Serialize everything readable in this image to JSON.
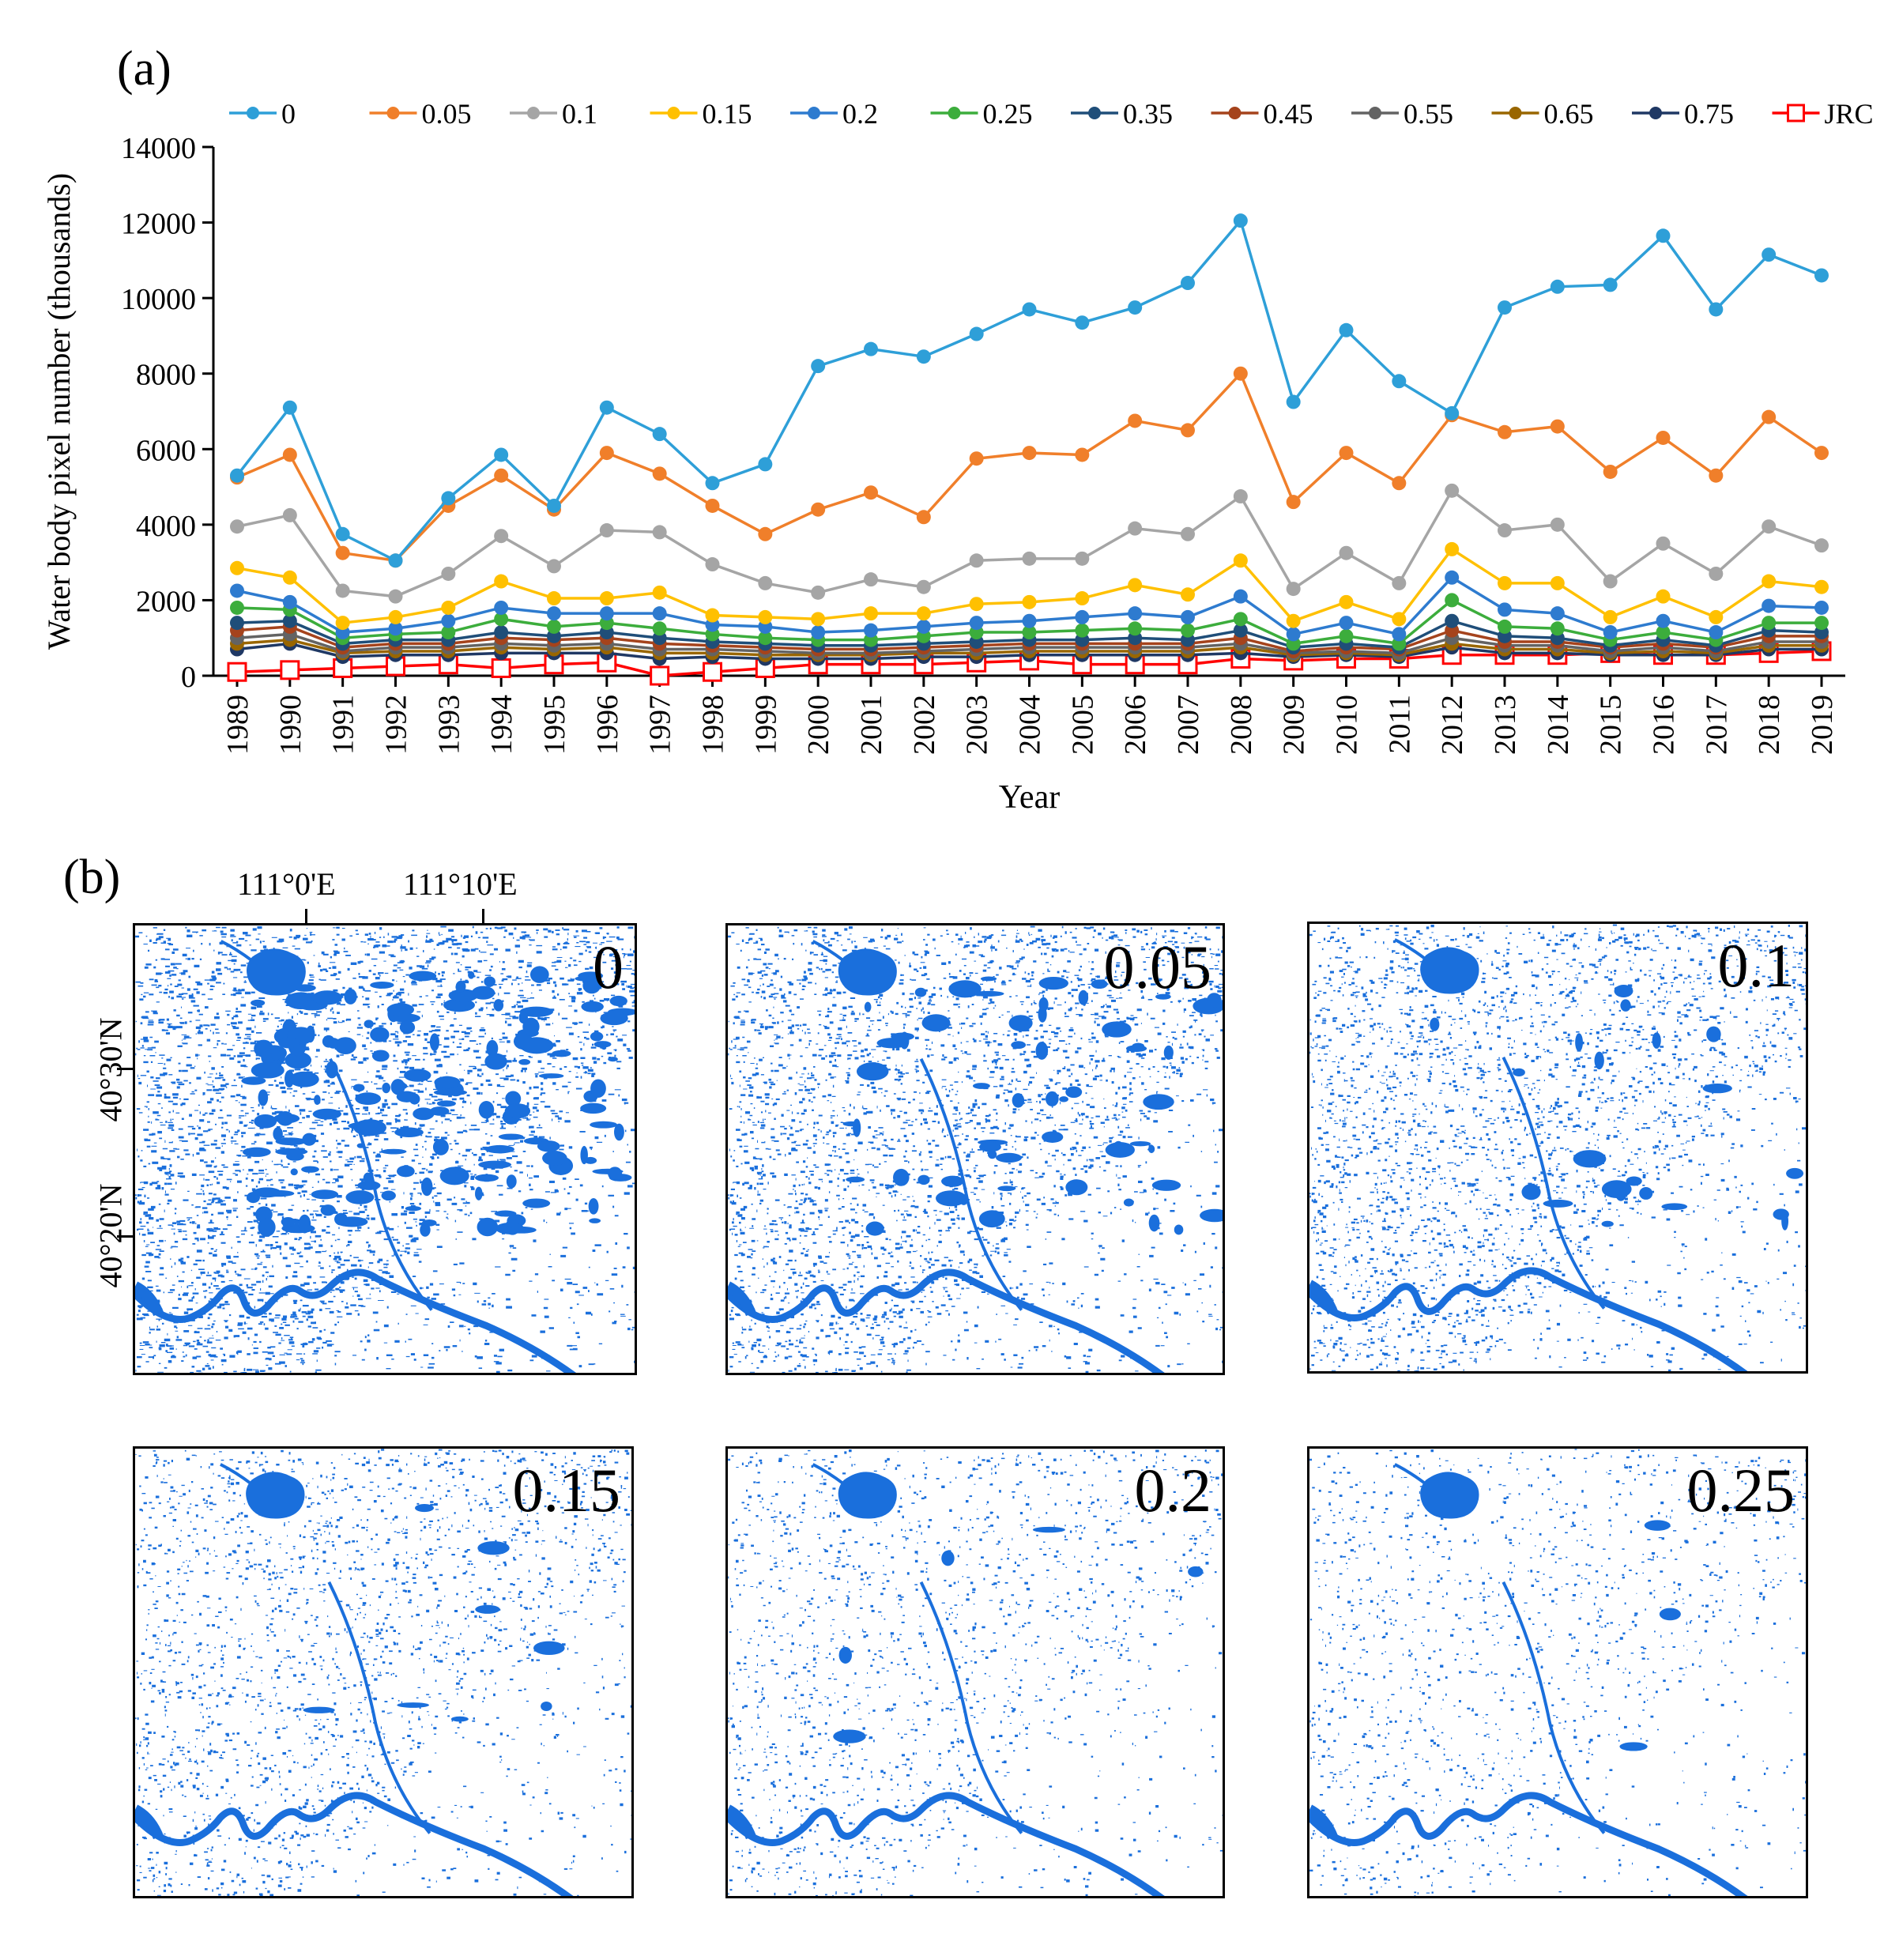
{
  "chart_data": {
    "type": "line",
    "panel_label": "(a)",
    "title": "",
    "xlabel": "Year",
    "ylabel": "Water body pixel number (thousands)",
    "ylim": [
      0,
      14000
    ],
    "yticks": [
      0,
      2000,
      4000,
      6000,
      8000,
      10000,
      12000,
      14000
    ],
    "x": [
      1989,
      1990,
      1991,
      1992,
      1993,
      1994,
      1995,
      1996,
      1997,
      1998,
      1999,
      2000,
      2001,
      2002,
      2003,
      2004,
      2005,
      2006,
      2007,
      2008,
      2009,
      2010,
      2011,
      2012,
      2013,
      2014,
      2015,
      2016,
      2017,
      2018,
      2019
    ],
    "legend_position": "top",
    "series": [
      {
        "name": "0",
        "color": "#2e9fd8",
        "marker": "circle",
        "values": [
          5300,
          7100,
          3750,
          3050,
          4700,
          5850,
          4500,
          7100,
          6400,
          5100,
          5600,
          8200,
          8650,
          8450,
          9050,
          9700,
          9350,
          9750,
          10400,
          12050,
          7250,
          9150,
          7800,
          6950,
          9750,
          10300,
          10350,
          11650,
          9700,
          11150,
          10600
        ]
      },
      {
        "name": "0.05",
        "color": "#f07f2a",
        "marker": "circle",
        "values": [
          5250,
          5850,
          3250,
          3050,
          4500,
          5300,
          4400,
          5900,
          5350,
          4500,
          3750,
          4400,
          4850,
          4200,
          5750,
          5900,
          5850,
          6750,
          6500,
          8000,
          4600,
          5900,
          5100,
          6900,
          6450,
          6600,
          5400,
          6300,
          5300,
          6850,
          5900
        ]
      },
      {
        "name": "0.1",
        "color": "#a5a5a5",
        "marker": "circle",
        "values": [
          3950,
          4250,
          2250,
          2100,
          2700,
          3700,
          2900,
          3850,
          3800,
          2950,
          2450,
          2200,
          2550,
          2350,
          3050,
          3100,
          3100,
          3900,
          3750,
          4750,
          2300,
          3250,
          2450,
          4900,
          3850,
          4000,
          2500,
          3500,
          2700,
          3950,
          3450
        ]
      },
      {
        "name": "0.15",
        "color": "#ffc000",
        "marker": "circle",
        "values": [
          2850,
          2600,
          1400,
          1550,
          1800,
          2500,
          2050,
          2050,
          2200,
          1600,
          1550,
          1500,
          1650,
          1650,
          1900,
          1950,
          2050,
          2400,
          2150,
          3050,
          1450,
          1950,
          1500,
          3350,
          2450,
          2450,
          1550,
          2100,
          1550,
          2500,
          2350
        ]
      },
      {
        "name": "0.2",
        "color": "#2e7bcf",
        "marker": "circle",
        "values": [
          2250,
          1950,
          1150,
          1250,
          1450,
          1800,
          1650,
          1650,
          1650,
          1350,
          1300,
          1150,
          1200,
          1300,
          1400,
          1450,
          1550,
          1650,
          1550,
          2100,
          1100,
          1400,
          1100,
          2600,
          1750,
          1650,
          1150,
          1450,
          1150,
          1850,
          1800
        ]
      },
      {
        "name": "0.25",
        "color": "#3cad3c",
        "marker": "circle",
        "values": [
          1800,
          1750,
          1000,
          1100,
          1150,
          1500,
          1300,
          1400,
          1250,
          1100,
          1000,
          950,
          950,
          1050,
          1150,
          1150,
          1200,
          1250,
          1200,
          1500,
          850,
          1050,
          850,
          2000,
          1300,
          1250,
          950,
          1150,
          950,
          1400,
          1400
        ]
      },
      {
        "name": "0.35",
        "color": "#1f4e79",
        "marker": "circle",
        "values": [
          1400,
          1450,
          850,
          950,
          950,
          1150,
          1050,
          1150,
          1000,
          900,
          850,
          800,
          800,
          850,
          900,
          950,
          950,
          1000,
          950,
          1200,
          750,
          850,
          750,
          1450,
          1050,
          1000,
          800,
          950,
          800,
          1200,
          1150
        ]
      },
      {
        "name": "0.45",
        "color": "#a5431c",
        "marker": "circle",
        "values": [
          1200,
          1300,
          750,
          850,
          850,
          1000,
          950,
          1000,
          850,
          800,
          750,
          700,
          700,
          750,
          800,
          850,
          850,
          850,
          850,
          1000,
          650,
          750,
          700,
          1200,
          900,
          900,
          750,
          850,
          750,
          1050,
          1050
        ]
      },
      {
        "name": "0.55",
        "color": "#636363",
        "marker": "circle",
        "values": [
          1000,
          1100,
          650,
          750,
          750,
          850,
          800,
          850,
          700,
          700,
          650,
          600,
          600,
          650,
          700,
          750,
          750,
          750,
          750,
          850,
          600,
          650,
          600,
          1000,
          800,
          800,
          650,
          750,
          650,
          900,
          900
        ]
      },
      {
        "name": "0.65",
        "color": "#996600",
        "marker": "circle",
        "values": [
          850,
          950,
          600,
          650,
          650,
          750,
          700,
          750,
          600,
          600,
          550,
          550,
          550,
          600,
          600,
          650,
          650,
          650,
          650,
          750,
          550,
          600,
          550,
          850,
          700,
          700,
          600,
          650,
          600,
          800,
          800
        ]
      },
      {
        "name": "0.75",
        "color": "#1f3864",
        "marker": "circle",
        "values": [
          700,
          850,
          500,
          550,
          550,
          600,
          600,
          600,
          450,
          500,
          450,
          450,
          450,
          500,
          500,
          550,
          550,
          550,
          550,
          600,
          500,
          550,
          500,
          750,
          600,
          600,
          550,
          550,
          550,
          700,
          700
        ]
      },
      {
        "name": "JRC",
        "color": "#ff0000",
        "marker": "square-open",
        "values": [
          100,
          150,
          200,
          250,
          300,
          200,
          300,
          350,
          0,
          100,
          200,
          300,
          300,
          300,
          350,
          400,
          300,
          300,
          300,
          450,
          400,
          450,
          450,
          550,
          550,
          550,
          600,
          550,
          550,
          600,
          650
        ]
      }
    ]
  },
  "maps": {
    "panel_label": "(b)",
    "lon_labels": [
      "111°0'E",
      "111°10'E"
    ],
    "lat_labels": [
      "40°30'N",
      "40°20'N"
    ],
    "water_color": "#1a6fdc",
    "panels": [
      {
        "label": "0",
        "density": 1.0
      },
      {
        "label": "0.05",
        "density": 0.6
      },
      {
        "label": "0.1",
        "density": 0.38
      },
      {
        "label": "0.15",
        "density": 0.24
      },
      {
        "label": "0.2",
        "density": 0.17
      },
      {
        "label": "0.25",
        "density": 0.13
      }
    ]
  }
}
